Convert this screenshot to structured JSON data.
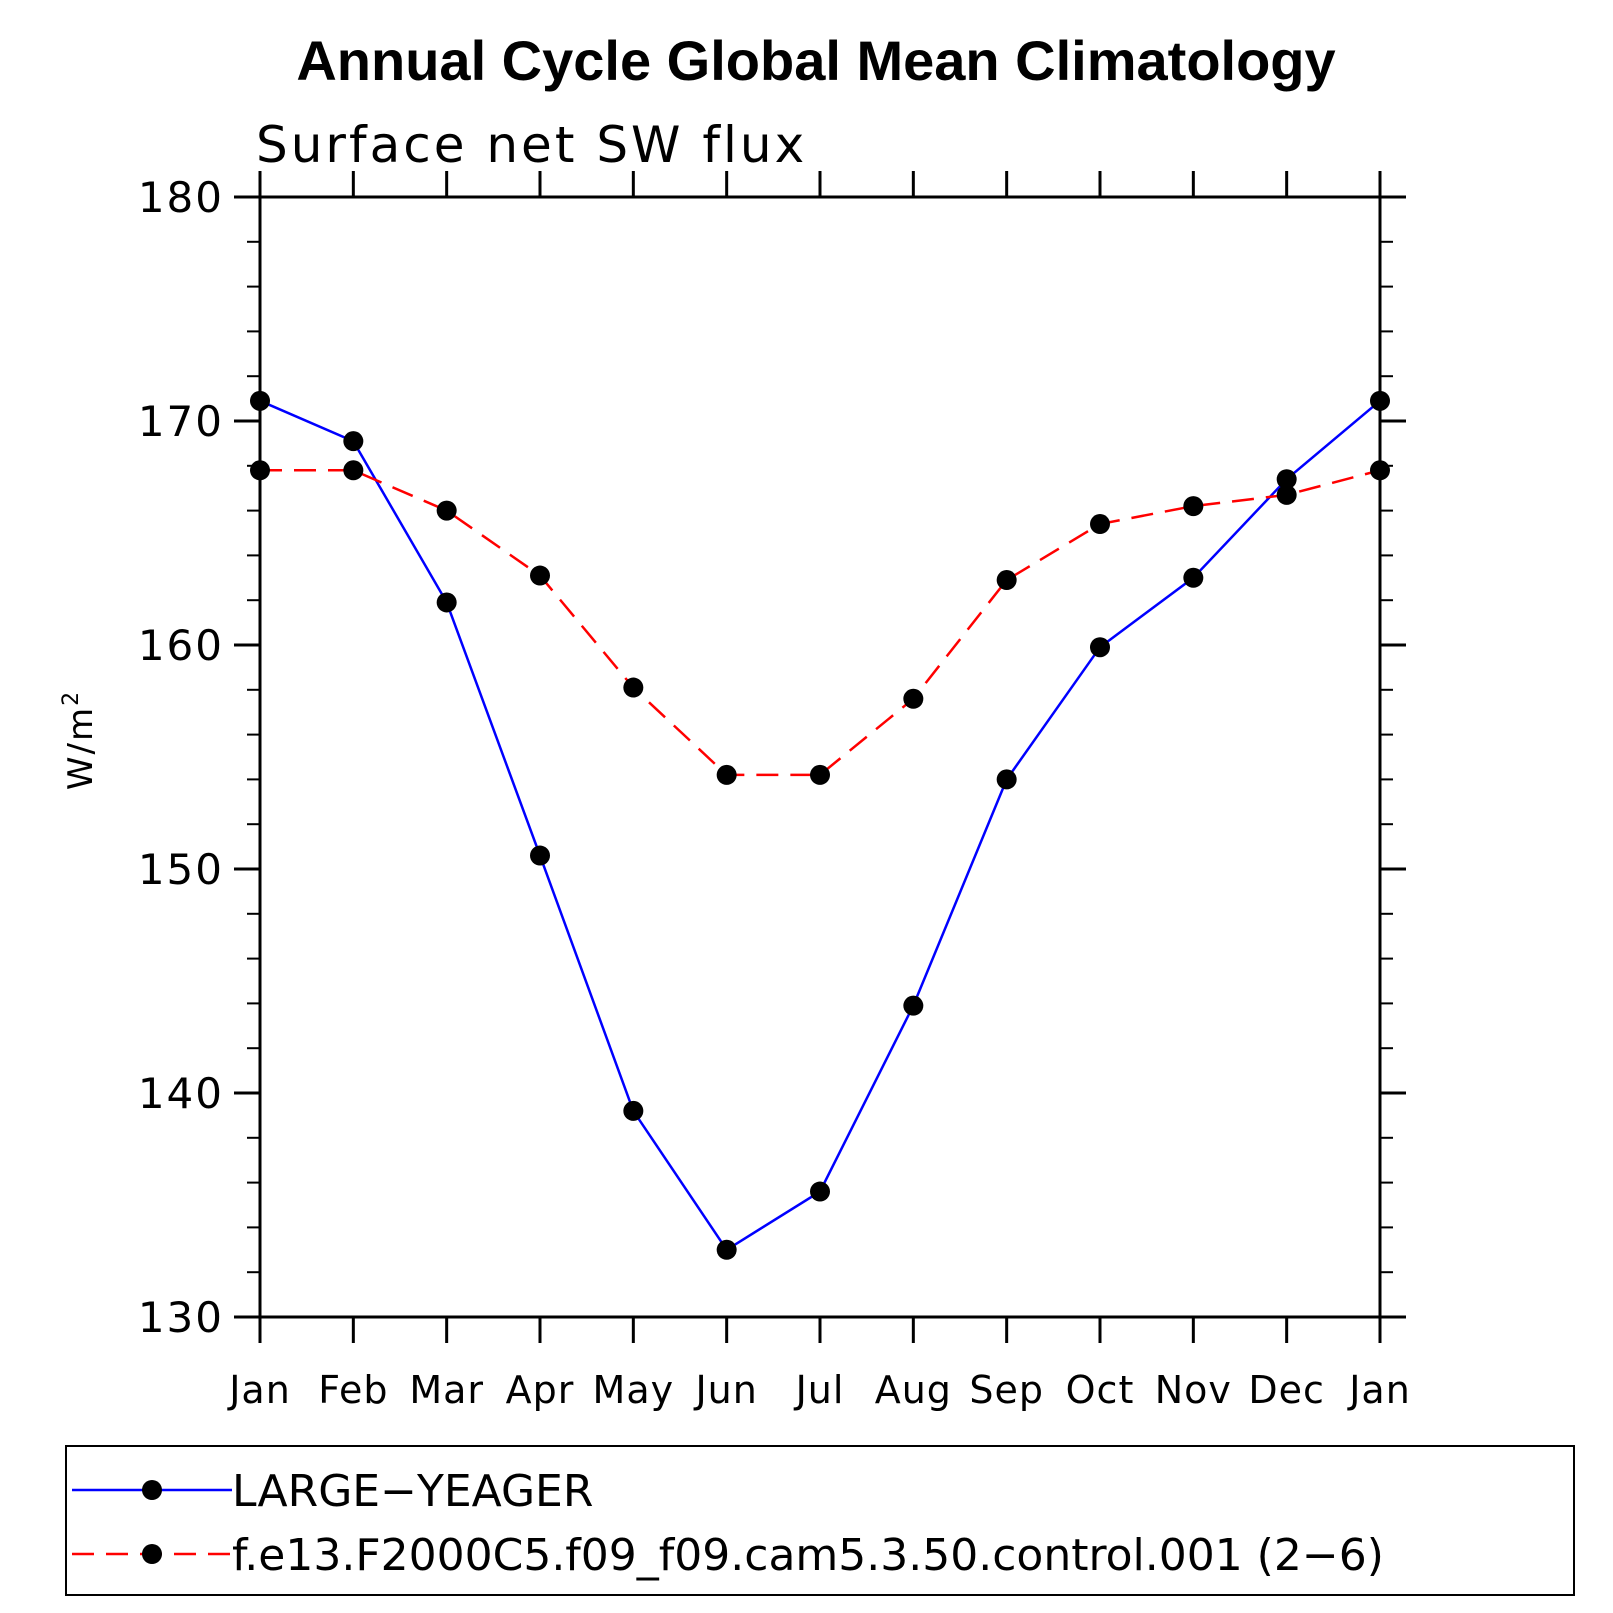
{
  "chart_data": {
    "type": "line",
    "title": "Annual Cycle Global Mean Climatology",
    "subtitle": "Surface net SW flux",
    "ylabel": "W/m",
    "ylabel_superscript": "2",
    "xlabel": "",
    "categories": [
      "Jan",
      "Feb",
      "Mar",
      "Apr",
      "May",
      "Jun",
      "Jul",
      "Aug",
      "Sep",
      "Oct",
      "Nov",
      "Dec",
      "Jan"
    ],
    "ylim": [
      130,
      180
    ],
    "yticks": [
      "130",
      "140",
      "150",
      "160",
      "170",
      "180"
    ],
    "grid": false,
    "legend_position": "bottom",
    "series": [
      {
        "name": "LARGE−YEAGER",
        "color": "#0000ff",
        "dash": "solid",
        "values": [
          170.9,
          169.1,
          161.9,
          150.6,
          139.2,
          133.0,
          135.6,
          143.9,
          154.0,
          159.9,
          163.0,
          167.4,
          170.9
        ]
      },
      {
        "name": "f.e13.F2000C5.f09_f09.cam5.3.50.control.001 (2−6)",
        "color": "#ff0000",
        "dash": "dashed",
        "values": [
          167.8,
          167.8,
          166.0,
          163.1,
          158.1,
          154.2,
          154.2,
          157.6,
          162.9,
          165.4,
          166.2,
          166.7,
          167.8
        ]
      }
    ]
  }
}
